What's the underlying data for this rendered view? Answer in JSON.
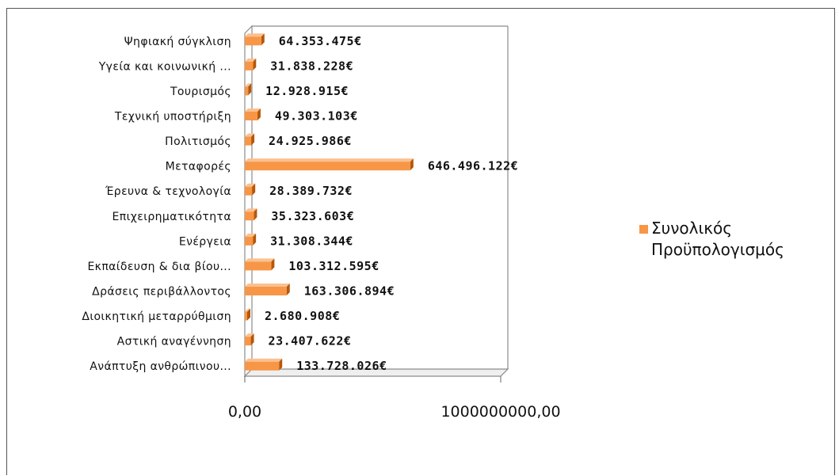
{
  "chart_data": {
    "type": "bar",
    "orientation": "horizontal",
    "categories": [
      "Ψηφιακή σύγκλιση",
      "Υγεία και κοινωνική ...",
      "Τουρισμός",
      "Τεχνική υποστήριξη",
      "Πολιτισμός",
      "Μεταφορές",
      "Έρευνα & τεχνολογία",
      "Επιχειρηματικότητα",
      "Ενέργεια",
      "Εκπαίδευση & δια βίου...",
      "Δράσεις περιβάλλοντος",
      "Διοικητική μεταρρύθμιση",
      "Αστική αναγέννηση",
      "Ανάπτυξη ανθρώπινου..."
    ],
    "series": [
      {
        "name": "Συνολικός Προϋπολογισμός",
        "values": [
          64353475,
          31838228,
          12928915,
          49303103,
          24925986,
          646496122,
          28389732,
          35323603,
          31308344,
          103312595,
          163306894,
          2680908,
          23407622,
          133728026
        ],
        "labels": [
          "64.353.475€",
          "31.838.228€",
          "12.928.915€",
          "49.303.103€",
          "24.925.986€",
          "646.496.122€",
          "28.389.732€",
          "35.323.603€",
          "31.308.344€",
          "103.312.595€",
          "163.306.894€",
          "2.680.908€",
          "23.407.622€",
          "133.728.026€"
        ],
        "color": "#F79646"
      }
    ],
    "xlim": [
      0,
      1000000000
    ],
    "x_ticks": [
      0,
      1000000000
    ],
    "x_tick_labels": [
      "0,00",
      "1000000000,00"
    ],
    "legend": {
      "position": "right",
      "lines": [
        "Συνολικός",
        "Προϋπολογισμός"
      ]
    },
    "grid": false
  }
}
